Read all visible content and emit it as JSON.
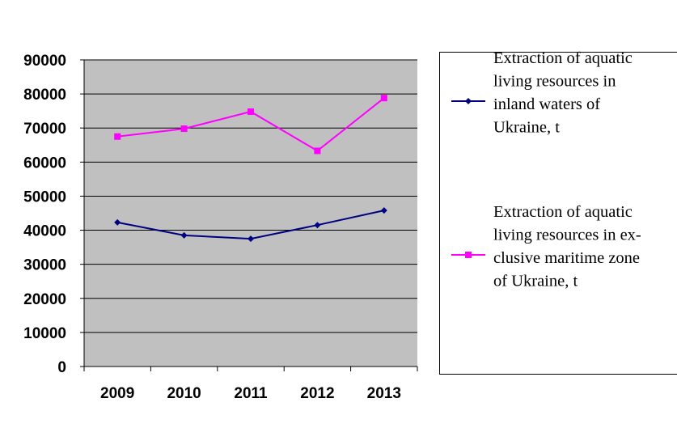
{
  "chart_data": {
    "type": "line",
    "title": "",
    "xlabel": "",
    "ylabel": "",
    "categories": [
      "2009",
      "2010",
      "2011",
      "2012",
      "2013"
    ],
    "ylim": [
      0,
      90000
    ],
    "yticks": [
      0,
      10000,
      20000,
      30000,
      40000,
      50000,
      60000,
      70000,
      80000,
      90000
    ],
    "ytick_labels": [
      "0",
      "10000",
      "20000",
      "30000",
      "40000",
      "50000",
      "60000",
      "70000",
      "80000",
      "90000"
    ],
    "grid": "horizontal",
    "plot_background": "#c0c0c0",
    "legend_position": "right",
    "series": [
      {
        "name": "Extraction of aquatic living resources in inland waters of Ukraine, t",
        "legend_lines": [
          "Extraction of aquatic",
          "living resources in",
          "inland waters of",
          "Ukraine, t"
        ],
        "color": "#000080",
        "marker": "diamond",
        "values": [
          42300,
          38500,
          37500,
          41500,
          45800
        ]
      },
      {
        "name": "Extraction of aquatic living resources in exclusive maritime zone of Ukraine, t",
        "legend_lines": [
          "Extraction of aquatic",
          "living resources in ex-",
          "clusive maritime zone",
          "of Ukraine, t"
        ],
        "color": "#ff00ff",
        "marker": "square",
        "values": [
          67500,
          69800,
          74800,
          63300,
          78800
        ]
      }
    ]
  }
}
